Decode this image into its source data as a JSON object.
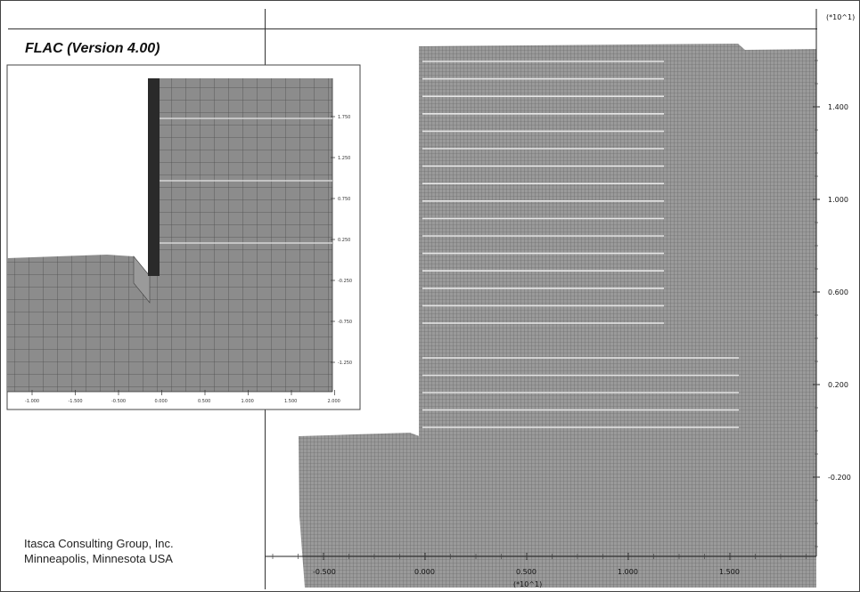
{
  "title": "FLAC (Version 4.00)",
  "company": [
    "Itasca Consulting Group, Inc.",
    "Minneapolis, Minnesota  USA"
  ],
  "main_plot": {
    "y_multiplier": "(*10^1)",
    "x_multiplier": "(*10^1)",
    "y_ticks": [
      "1.400",
      "1.000",
      "0.600",
      "0.200",
      "-0.200"
    ],
    "x_ticks": [
      "-0.500",
      "0.000",
      "0.500",
      "1.000",
      "1.500"
    ],
    "upper_reinforcement_count": 16,
    "lower_reinforcement_count": 5
  },
  "inset_plot": {
    "y_ticks": [
      "1.750",
      "1.250",
      "0.750",
      "0.250",
      "-0.250",
      "-0.750",
      "-1.250"
    ],
    "x_ticks": [
      "-1.000",
      "-1.500",
      "-0.500",
      "0.000",
      "0.500",
      "1.000",
      "1.500",
      "2.000"
    ],
    "reinforcement_count": 3
  },
  "colors": {
    "mesh": "#8f8f8f",
    "grid_line": "#5a5a5a",
    "reinforcement": "#e6e6e6",
    "facing": "#2a2a2a"
  }
}
